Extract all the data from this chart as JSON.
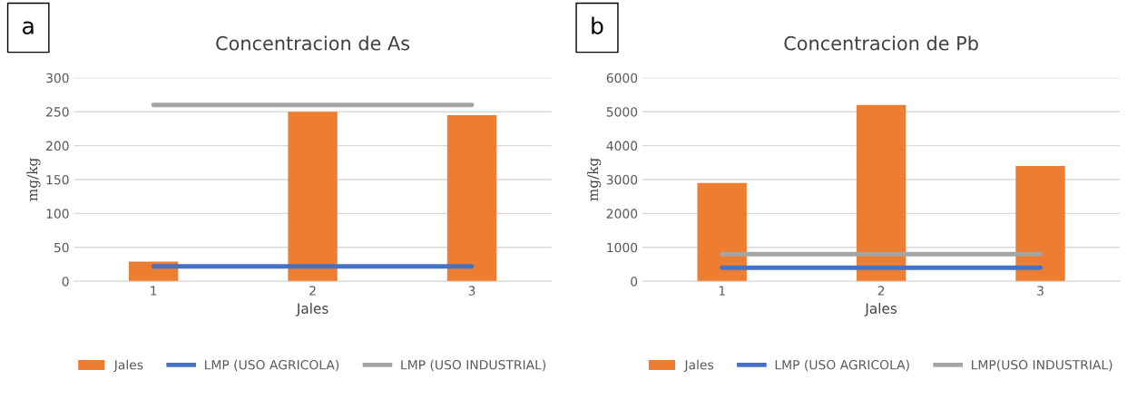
{
  "chart_data": [
    {
      "type": "bar",
      "title": "Concentracion de As",
      "xlabel": "Jales",
      "ylabel": "mg/kg",
      "categories": [
        "1",
        "2",
        "3"
      ],
      "ylim": [
        0,
        300
      ],
      "yticks": [
        0,
        50,
        100,
        150,
        200,
        250,
        300
      ],
      "grid": "y",
      "legend": "bottom",
      "annotations": [
        "a"
      ],
      "series": [
        {
          "name": "Jales",
          "color": "#ed7d31",
          "values": [
            29,
            250,
            245
          ]
        },
        {
          "name": "LMP (USO AGRICOLA)",
          "type": "line",
          "color": "#4472c4",
          "values": [
            22,
            22,
            22
          ]
        },
        {
          "name": "LMP (USO INDUSTRIAL)",
          "type": "line",
          "color": "#a5a5a5",
          "values": [
            260,
            260,
            260
          ]
        }
      ]
    },
    {
      "type": "bar",
      "title": "Concentracion de Pb",
      "xlabel": "Jales",
      "ylabel": "mg/kg",
      "categories": [
        "1",
        "2",
        "3"
      ],
      "ylim": [
        0,
        6000
      ],
      "yticks": [
        0,
        1000,
        2000,
        3000,
        4000,
        5000,
        6000
      ],
      "grid": "y",
      "legend": "bottom",
      "annotations": [
        "b"
      ],
      "series": [
        {
          "name": "Jales",
          "color": "#ed7d31",
          "values": [
            2900,
            5200,
            3400
          ]
        },
        {
          "name": "LMP (USO AGRICOLA)",
          "type": "line",
          "color": "#4472c4",
          "values": [
            400,
            400,
            400
          ]
        },
        {
          "name": "LMP(USO INDUSTRIAL)",
          "type": "line",
          "color": "#a5a5a5",
          "values": [
            800,
            800,
            800
          ]
        }
      ]
    }
  ]
}
